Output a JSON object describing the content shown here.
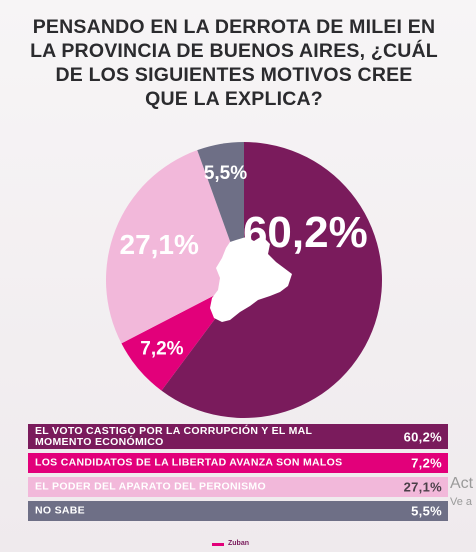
{
  "title_lines": [
    "PENSANDO EN LA DERROTA DE MILEI EN",
    "LA PROVINCIA DE BUENOS AIRES, ¿CUÁL",
    "DE LOS SIGUIENTES MOTIVOS CREE",
    "QUE LA EXPLICA?"
  ],
  "chart_data": {
    "type": "pie",
    "title": "PENSANDO EN LA DERROTA DE MILEI EN LA PROVINCIA DE BUENOS AIRES, ¿CUÁL DE LOS SIGUIENTES MOTIVOS CREE QUE LA EXPLICA?",
    "slices": [
      {
        "label": "EL VOTO CASTIGO POR LA CORRUPCIÓN Y EL MAL MOMENTO ECONÓMICO",
        "value": 60.2,
        "display": "60,2%",
        "color": "#7a1b5c"
      },
      {
        "label": "LOS CANDIDATOS DE LA LIBERTAD AVANZA SON MALOS",
        "value": 7.2,
        "display": "7,2%",
        "color": "#e2007a"
      },
      {
        "label": "EL PODER DEL APARATO DEL PERONISMO",
        "value": 27.1,
        "display": "27,1%",
        "color": "#f2b8da"
      },
      {
        "label": "NO SABE",
        "value": 5.5,
        "display": "5,5%",
        "color": "#6e6f86"
      }
    ],
    "start": "12 o'clock",
    "direction": "clockwise"
  },
  "legend": [
    {
      "label_lines": [
        "EL VOTO CASTIGO POR LA CORRUPCIÓN Y EL MAL",
        "MOMENTO ECONÓMICO"
      ],
      "value": "60,2%",
      "color": "#7a1b5c"
    },
    {
      "label_lines": [
        "LOS CANDIDATOS DE LA LIBERTAD AVANZA SON MALOS"
      ],
      "value": "7,2%",
      "color": "#e2007a"
    },
    {
      "label_lines": [
        "EL PODER DEL APARATO DEL PERONISMO"
      ],
      "value": "27,1%",
      "color": "#f2b8da"
    },
    {
      "label_lines": [
        "NO SABE"
      ],
      "value": "5,5%",
      "color": "#6e6f86"
    }
  ],
  "footer": {
    "logo_text": "Zuban"
  },
  "watermark": {
    "line1": "Act",
    "line2": "Ve a"
  }
}
